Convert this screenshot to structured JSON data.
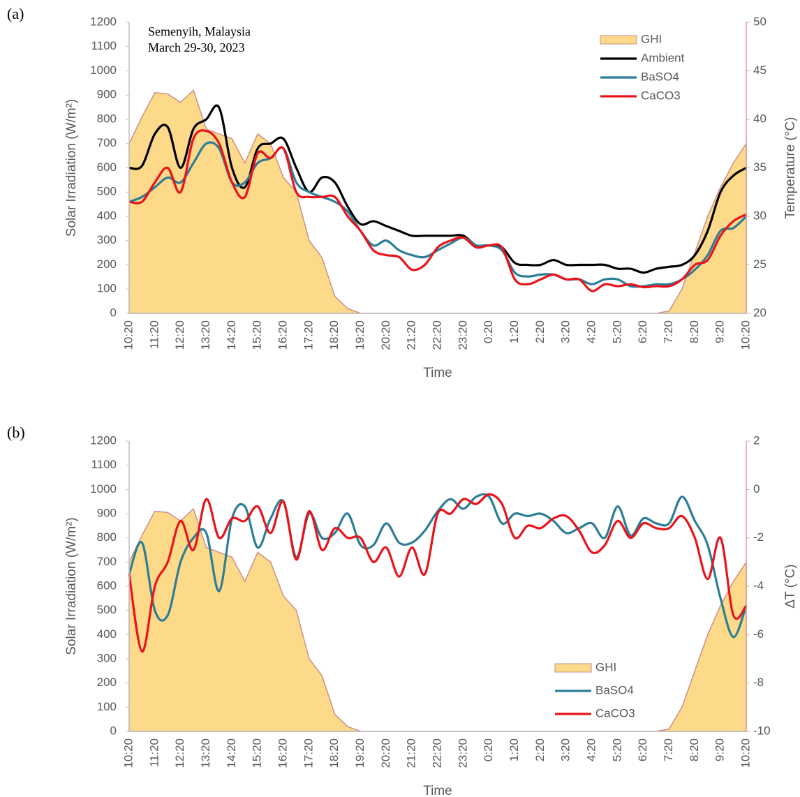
{
  "chart_data": [
    {
      "type": "line",
      "label": "(a)",
      "annotations": [
        "Semenyih, Malaysia",
        "March 29-30, 2023"
      ],
      "xlabel": "Time",
      "ylabel": "Solar Irradiation (W/m²)",
      "y2label": "Temperature (°C)",
      "categories": [
        "10:20",
        null,
        "11:20",
        null,
        "12:20",
        null,
        "13:20",
        null,
        "14:20",
        null,
        "15:20",
        null,
        "16:20",
        null,
        "17:20",
        null,
        "18:20",
        null,
        "19:20",
        null,
        "20:20",
        null,
        "21:20",
        null,
        "22:20",
        null,
        "23:20",
        null,
        "0:20",
        null,
        "1:20",
        null,
        "2:20",
        null,
        "3:20",
        null,
        "4:20",
        null,
        "5:20",
        null,
        "6:20",
        null,
        "7:20",
        null,
        "8:20",
        null,
        "9:20",
        null,
        "10:20"
      ],
      "ylim": [
        0,
        1200
      ],
      "yticks": [
        0,
        100,
        200,
        300,
        400,
        500,
        600,
        700,
        800,
        900,
        1000,
        1100,
        1200
      ],
      "y2lim": [
        20,
        50
      ],
      "y2ticks": [
        20,
        25,
        30,
        35,
        40,
        45,
        50
      ],
      "legend": "upper right",
      "series": [
        {
          "name": "GHI",
          "type": "area",
          "color": "#fdd98a",
          "values": [
            700,
            810,
            910,
            905,
            870,
            920,
            760,
            740,
            720,
            620,
            740,
            700,
            560,
            500,
            300,
            230,
            70,
            20,
            0,
            0,
            0,
            0,
            0,
            0,
            0,
            0,
            0,
            0,
            0,
            0,
            0,
            0,
            0,
            0,
            0,
            0,
            0,
            0,
            0,
            0,
            0,
            0,
            10,
            100,
            250,
            400,
            520,
            620,
            700
          ]
        },
        {
          "name": "Ambient",
          "type": "line",
          "axis": "y2",
          "color": "#000000",
          "values": [
            35,
            35.2,
            38.5,
            39.2,
            35,
            39,
            40,
            41.2,
            35,
            33,
            37,
            37.5,
            38,
            35,
            32.5,
            34,
            33.5,
            31,
            29.2,
            29.5,
            29,
            28.5,
            28,
            28,
            28,
            28,
            28,
            27,
            27,
            26.8,
            25.2,
            25,
            25,
            25.5,
            25,
            25,
            25,
            25,
            24.6,
            24.6,
            24.2,
            24.6,
            24.8,
            25,
            26,
            28.5,
            32.5,
            34.2,
            35
          ]
        },
        {
          "name": "BaSO4",
          "type": "line",
          "axis": "y2",
          "color": "#2e7d96",
          "values": [
            31.5,
            32,
            33,
            34,
            33.5,
            35.5,
            37.5,
            37,
            33.5,
            33.5,
            35.5,
            36,
            37,
            33.5,
            32.5,
            32,
            31.5,
            30.5,
            28.5,
            27,
            27.5,
            26.5,
            26,
            25.8,
            26.5,
            27.2,
            27.8,
            27,
            27,
            26.5,
            24.2,
            23.8,
            24,
            24,
            23.5,
            23.5,
            23,
            23.5,
            23.5,
            22.8,
            22.8,
            23,
            23,
            23.5,
            24.5,
            26,
            28.5,
            28.8,
            30
          ]
        },
        {
          "name": "CaCO3",
          "type": "line",
          "axis": "y2",
          "color": "#e8141b",
          "values": [
            31.5,
            31.5,
            33.5,
            35,
            32.5,
            38,
            38.8,
            37.5,
            33.5,
            32,
            36.5,
            36,
            37,
            32.5,
            32,
            32,
            32,
            30,
            28.5,
            26.5,
            26,
            25.8,
            24.5,
            25,
            26.8,
            27.5,
            27.8,
            26.8,
            27,
            26.8,
            23.5,
            23,
            23.5,
            24,
            23.5,
            23.5,
            22.3,
            23,
            22.8,
            23,
            22.7,
            22.8,
            22.8,
            23.5,
            25,
            25.5,
            28,
            29.5,
            30.2
          ]
        }
      ]
    },
    {
      "type": "line",
      "label": "(b)",
      "xlabel": "Time",
      "ylabel": "Solar Irradiation (W/m²)",
      "y2label": "ΔT (°C)",
      "categories": [
        "10:20",
        null,
        "11:20",
        null,
        "12:20",
        null,
        "13:20",
        null,
        "14:20",
        null,
        "15:20",
        null,
        "16:20",
        null,
        "17:20",
        null,
        "18:20",
        null,
        "19:20",
        null,
        "20:20",
        null,
        "21:20",
        null,
        "22:20",
        null,
        "23:20",
        null,
        "0:20",
        null,
        "1:20",
        null,
        "2:20",
        null,
        "3:20",
        null,
        "4:20",
        null,
        "5:20",
        null,
        "6:20",
        null,
        "7:20",
        null,
        "8:20",
        null,
        "9:20",
        null,
        "10:20"
      ],
      "ylim": [
        0,
        1200
      ],
      "yticks": [
        0,
        100,
        200,
        300,
        400,
        500,
        600,
        700,
        800,
        900,
        1000,
        1100,
        1200
      ],
      "y2lim": [
        -10,
        2
      ],
      "y2ticks": [
        -10,
        -8,
        -6,
        -4,
        -2,
        0,
        2
      ],
      "legend": "lower right",
      "series": [
        {
          "name": "GHI",
          "type": "area",
          "color": "#fdd98a",
          "values": [
            700,
            810,
            910,
            905,
            870,
            920,
            760,
            740,
            720,
            620,
            740,
            700,
            560,
            500,
            300,
            230,
            70,
            20,
            0,
            0,
            0,
            0,
            0,
            0,
            0,
            0,
            0,
            0,
            0,
            0,
            0,
            0,
            0,
            0,
            0,
            0,
            0,
            0,
            0,
            0,
            0,
            0,
            10,
            100,
            250,
            400,
            520,
            620,
            700
          ]
        },
        {
          "name": "BaSO4",
          "type": "line",
          "axis": "y2",
          "color": "#2e7d96",
          "values": [
            -3.5,
            -2.2,
            -5,
            -5.2,
            -3,
            -2,
            -1.8,
            -4.2,
            -1.2,
            -0.7,
            -2.4,
            -1.2,
            -0.5,
            -2.8,
            -1,
            -2,
            -1.8,
            -1,
            -2.3,
            -2.3,
            -1.4,
            -2.2,
            -2.2,
            -1.7,
            -0.9,
            -0.4,
            -0.8,
            -0.3,
            -0.3,
            -1.4,
            -1,
            -1.1,
            -1,
            -1.3,
            -1.8,
            -1.6,
            -1.4,
            -2,
            -0.7,
            -1.9,
            -1.2,
            -1.4,
            -1.4,
            -0.3,
            -1.3,
            -2.3,
            -4.5,
            -6.1,
            -4.8
          ]
        },
        {
          "name": "CaCO3",
          "type": "line",
          "axis": "y2",
          "color": "#e8141b",
          "values": [
            -3.5,
            -6.7,
            -4,
            -3,
            -1.3,
            -2.5,
            -0.4,
            -2,
            -1.2,
            -1.3,
            -0.7,
            -1.8,
            -0.5,
            -2.9,
            -0.9,
            -2.5,
            -1.6,
            -2,
            -2,
            -3,
            -2.4,
            -3.6,
            -2.4,
            -3.5,
            -1,
            -1,
            -0.4,
            -0.6,
            -0.2,
            -0.6,
            -2,
            -1.5,
            -1.6,
            -1.2,
            -1.1,
            -1.7,
            -2.6,
            -2.3,
            -1.3,
            -2,
            -1.4,
            -1.6,
            -1.6,
            -1.1,
            -2,
            -3.7,
            -2,
            -5.2,
            -4.8
          ]
        }
      ]
    }
  ]
}
